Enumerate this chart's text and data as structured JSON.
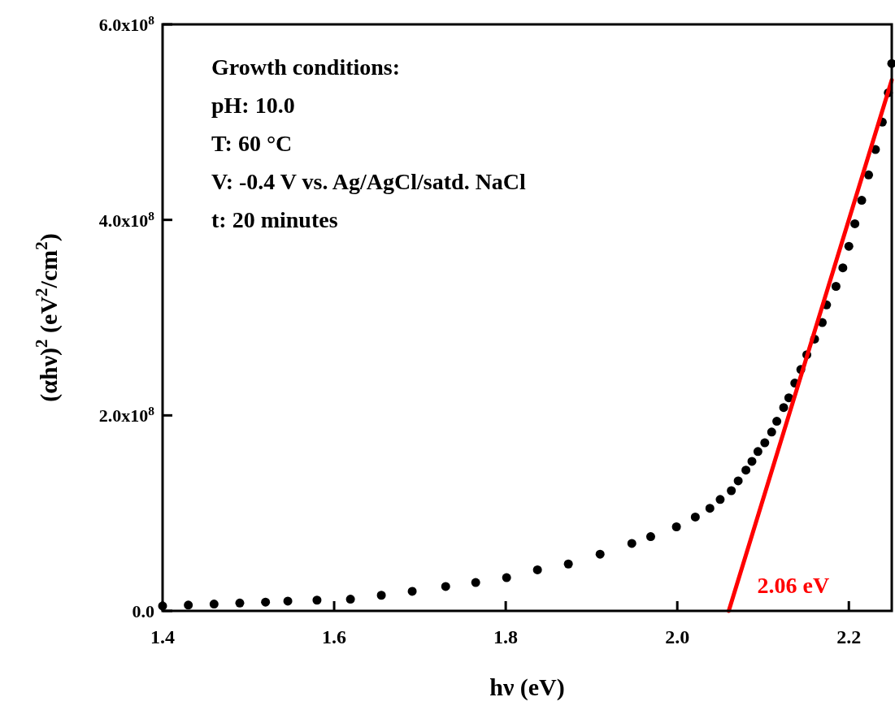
{
  "chart_data": {
    "type": "scatter",
    "xlabel": "hν (eV)",
    "ylabel": "(αhν)$^{2}$ (eV$^{2}$/cm$^{2}$)",
    "xlim": [
      1.4,
      2.25
    ],
    "xticks": [
      1.4,
      1.6,
      1.8,
      {
        "value": 2,
        "label": "2.0"
      },
      2.2
    ],
    "ylim": [
      0,
      600000000
    ],
    "yticks": [
      {
        "value": 0,
        "label": "0.0"
      },
      {
        "value": 200000000,
        "label": "2.0x10$^{8}$"
      },
      {
        "value": 400000000,
        "label": "4.0x10$^{8}$"
      },
      {
        "value": 600000000,
        "label": "6.0x10$^{8}$"
      }
    ],
    "grid": false,
    "legend": false,
    "marker": "circle",
    "annotations": [
      "Growth conditions:",
      "pH: 10.0",
      "T: 60 °C",
      "V: -0.4 V vs. Ag/AgCl/satd. NaCl",
      "t: 20 minutes"
    ],
    "series": [
      {
        "color": "#000000",
        "x": [
          1.4,
          1.43,
          1.46,
          1.49,
          1.52,
          1.546,
          1.58,
          1.619,
          1.655,
          1.691,
          1.73,
          1.765,
          1.801,
          1.837,
          1.873,
          1.91,
          1.947,
          1.969,
          1.999,
          2.021,
          2.038,
          2.05,
          2.063,
          2.071,
          2.08,
          2.087,
          2.094,
          2.102,
          2.11,
          2.116,
          2.124,
          2.13,
          2.137,
          2.144,
          2.151,
          2.16,
          2.169,
          2.174,
          2.185,
          2.193,
          2.2,
          2.207,
          2.215,
          2.223,
          2.231,
          2.239,
          2.246,
          2.25
        ],
        "values": [
          5000000,
          6000000,
          7000000,
          8000000,
          9000000,
          10000000,
          11000000,
          12000000,
          16000000,
          20000000,
          25000000,
          29000000,
          34000000,
          42000000,
          48000000,
          58000000,
          69000000,
          76000000,
          86000000,
          96000000,
          105000000,
          114000000,
          123000000,
          133000000,
          144000000,
          153000000,
          163000000,
          172000000,
          183000000,
          194000000,
          208000000,
          218000000,
          233000000,
          247000000,
          262000000,
          278000000,
          295000000,
          313000000,
          332000000,
          351000000,
          373000000,
          396000000,
          420000000,
          446000000,
          472000000,
          500000000,
          530000000,
          560000000
        ]
      },
      {
        "type": "line",
        "marker": "none",
        "name": "2.06 eV",
        "color": "#ff0000",
        "x": [
          2.06,
          2.25
        ],
        "values": [
          0,
          543000000
        ]
      }
    ]
  }
}
